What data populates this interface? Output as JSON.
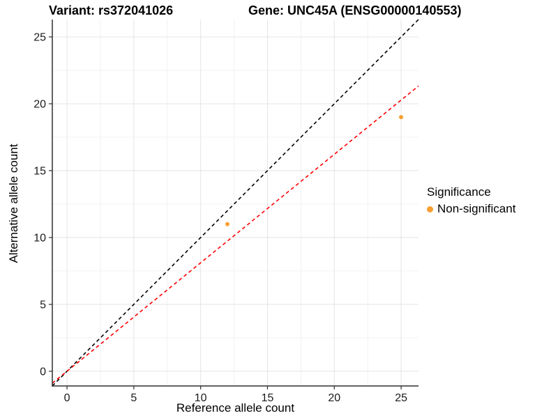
{
  "chart_data": {
    "type": "scatter",
    "title_left": "Variant: rs372041026",
    "title_right": "Gene: UNC45A (ENSG00000140553)",
    "xlabel": "Reference allele count",
    "ylabel": "Alternative allele count",
    "xlim": [
      -1.1,
      26.3
    ],
    "ylim": [
      -1.1,
      26.3
    ],
    "xticks": [
      0,
      5,
      10,
      15,
      20,
      25
    ],
    "yticks": [
      0,
      5,
      10,
      15,
      20,
      25
    ],
    "minor_ticks": [
      2.5,
      7.5,
      12.5,
      17.5,
      22.5
    ],
    "grid": "major+minor",
    "points": [
      {
        "x": 12,
        "y": 11,
        "series": "Non-significant"
      },
      {
        "x": 25,
        "y": 19,
        "series": "Non-significant"
      }
    ],
    "lines": [
      {
        "name": "identity-line",
        "slope": 1.0,
        "intercept": 0,
        "color": "#000000",
        "style": "dashed"
      },
      {
        "name": "regression-line",
        "slope": 0.811,
        "intercept": 0,
        "color": "#FF0000",
        "style": "dashed"
      }
    ],
    "legend": {
      "title": "Significance",
      "position": "right",
      "items": [
        {
          "label": "Non-significant",
          "color": "#F9A032"
        }
      ]
    },
    "colors": {
      "point": "#F9A032",
      "grid_major": "#E4E4E4",
      "grid_minor": "#F1F1F1",
      "axis": "#2E2E2E",
      "tick_label": "#1A1A1A"
    }
  }
}
